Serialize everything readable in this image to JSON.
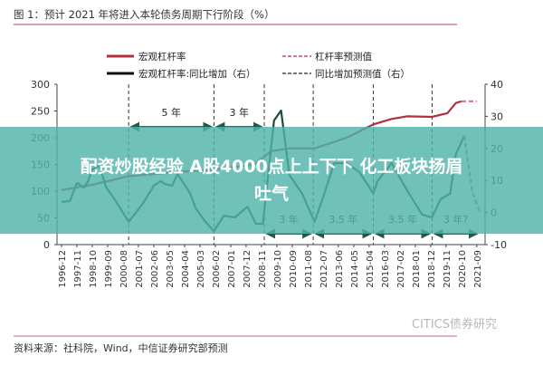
{
  "banner": {
    "line1": "配资炒股经验 A股4000点上上下下 化工板块扬眉",
    "line2": "吐气",
    "color": "#4fb3a9"
  },
  "chart_data": {
    "type": "line",
    "title": "图 1：预计 2021 年将进入本轮债务周期下行阶段（%）",
    "source": "资料来源：社科院，Wind，中信证券研究部预测",
    "watermark": "CITICS债券研究",
    "left_axis": {
      "ylim": [
        0,
        300
      ],
      "ticks": [
        "300",
        "250",
        "200",
        "150",
        "100",
        "50",
        "0"
      ]
    },
    "right_axis": {
      "ylim": [
        -10,
        40
      ],
      "ticks": [
        "40",
        "30",
        "20",
        "10",
        "0",
        "-10"
      ]
    },
    "x_ticks": [
      "1996-12",
      "1997-11",
      "1998-10",
      "1999-09",
      "2000-08",
      "2001-07",
      "2002-06",
      "2003-05",
      "2004-04",
      "2005-03",
      "2006-02",
      "2007-01",
      "2007-12",
      "2008-11",
      "2009-10",
      "2010-09",
      "2011-08",
      "2012-07",
      "2013-06",
      "2014-05",
      "2015-04",
      "2016-03",
      "2017-02",
      "2018-01",
      "2018-12",
      "2019-11",
      "2020-10",
      "2021-09"
    ],
    "grid": false,
    "legend": {
      "placement": "top",
      "items": [
        "宏观杠杆率",
        "杠杆率预测值",
        "宏观杠杆率:同比增加（右）",
        "同比增加预测值（右）"
      ]
    },
    "colors": {
      "leverage": "#b0303c",
      "leverage_forecast": "#d77a8a",
      "yoy": "#1f4a3c",
      "yoy_forecast": "#888888"
    },
    "series": [
      {
        "name": "宏观杠杆率",
        "axis": "left",
        "style": "solid",
        "x": [
          "1996-12",
          "1998-10",
          "2000-12",
          "2003-11",
          "2006-01",
          "2008-06",
          "2009-06",
          "2010-07",
          "2012-01",
          "2013-12",
          "2015-07",
          "2016-08",
          "2017-07",
          "2019-01",
          "2019-12",
          "2020-06",
          "2020-10"
        ],
        "y": [
          102,
          112,
          128,
          136,
          140,
          150,
          175,
          180,
          180,
          200,
          225,
          235,
          240,
          239,
          246,
          265,
          268
        ]
      },
      {
        "name": "杠杆率预测值",
        "axis": "left",
        "style": "dashed",
        "x": [
          "2020-10",
          "2021-09"
        ],
        "y": [
          268,
          268
        ]
      },
      {
        "name": "宏观杠杆率:同比增加（右）",
        "axis": "right",
        "style": "solid",
        "x": [
          "1996-12",
          "1997-06",
          "1997-11",
          "1998-04",
          "1998-07",
          "1998-10",
          "1999-03",
          "1999-08",
          "2000-02",
          "2000-12",
          "2001-10",
          "2002-06",
          "2002-11",
          "2003-02",
          "2003-07",
          "2003-11",
          "2004-08",
          "2004-12",
          "2005-07",
          "2006-01",
          "2006-08",
          "2007-04",
          "2008-01",
          "2008-07",
          "2008-12",
          "2009-08",
          "2010-01",
          "2010-07",
          "2011-04",
          "2012-01",
          "2012-08",
          "2013-03",
          "2013-12",
          "2014-09",
          "2015-07",
          "2015-10",
          "2016-08",
          "2017-07",
          "2018-06",
          "2019-01",
          "2019-07",
          "2020-02",
          "2020-06",
          "2020-12"
        ],
        "y": [
          3.3,
          3.6,
          9.2,
          7.8,
          9.8,
          13.5,
          14.6,
          7.8,
          4.1,
          -2.9,
          2.7,
          8.4,
          9.8,
          8.9,
          8.4,
          12.0,
          6.0,
          1.3,
          -2.9,
          -5.8,
          -1.0,
          -1.5,
          1.8,
          -3.5,
          -3.5,
          28.7,
          31.8,
          11.7,
          6.0,
          -2.9,
          6.0,
          15.4,
          15.4,
          12.6,
          6.0,
          9.8,
          15.4,
          7.0,
          -0.7,
          -1.5,
          4.1,
          6.0,
          18.2,
          23.9
        ]
      },
      {
        "name": "同比增加预测值（右）",
        "axis": "right",
        "style": "dashed",
        "x": [
          "2020-12",
          "2021-06",
          "2021-11"
        ],
        "y": [
          23.9,
          6.0,
          0.4
        ]
      }
    ],
    "cycle_markers": [
      "2000-12",
      "2006-01",
      "2009-01",
      "2011-12",
      "2015-07",
      "2019-01"
    ],
    "annotations": [
      {
        "label": "5 年",
        "from": "2000-12",
        "to": "2006-01",
        "level": "top"
      },
      {
        "label": "3 年",
        "from": "2006-01",
        "to": "2009-01",
        "level": "top"
      },
      {
        "label": "3 年",
        "from": "2009-01",
        "to": "2011-12",
        "level": "bottom"
      },
      {
        "label": "3.5 年",
        "from": "2011-12",
        "to": "2015-07",
        "level": "bottom"
      },
      {
        "label": "3.5 年",
        "from": "2015-07",
        "to": "2019-01",
        "level": "bottom"
      },
      {
        "label": "3 年?",
        "from": "2019-01",
        "to": "2021-11",
        "level": "bottom"
      }
    ]
  }
}
